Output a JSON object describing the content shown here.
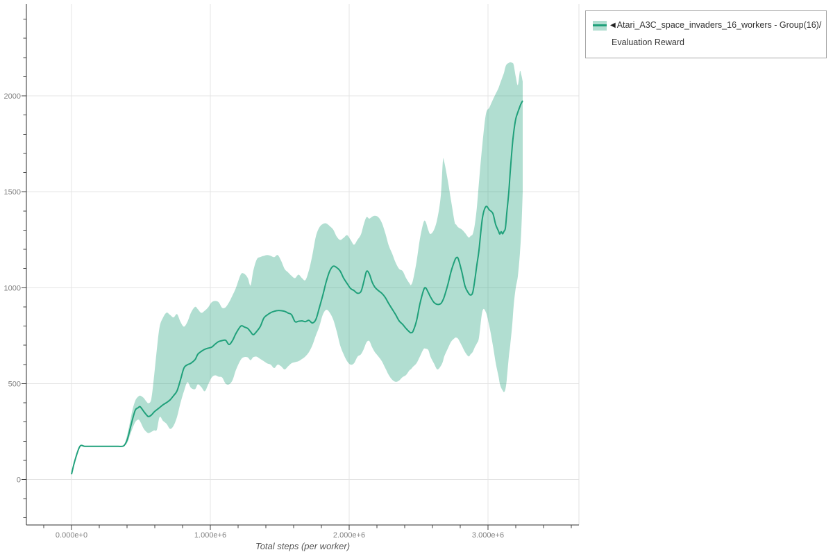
{
  "page": {
    "background": "#ffffff"
  },
  "legend": {
    "collapse_icon": "◀",
    "line1": "Atari_A3C_space_invaders_16_workers - Group(16)/",
    "line2": "Evaluation Reward",
    "border_color": "#a6a6a6"
  },
  "chart_data": {
    "type": "line",
    "title": "",
    "xlabel": "Total steps (per worker)",
    "ylabel": "",
    "grid": true,
    "legend_position": "top-right",
    "x_tick_labels": [
      "0.000e+0",
      "1.000e+6",
      "2.000e+6",
      "3.000e+6"
    ],
    "x_tick_values_e6": [
      0,
      1,
      2,
      3
    ],
    "x_minor_tick_step_e6": 0.2,
    "x_minor_tick_range_e6": [
      -0.2,
      3.6
    ],
    "y_tick_values": [
      0,
      500,
      1000,
      1500,
      2000
    ],
    "y_minor_tick_step": 100,
    "y_minor_tick_range": [
      -200,
      2400
    ],
    "x_range_e6": [
      -0.325,
      3.655
    ],
    "y_range": [
      -237,
      2478
    ],
    "colors": {
      "gridline": "#e4e4e4",
      "axis": "#2f2f2f",
      "tick": "#404040",
      "tick_label": "#808080",
      "right_border": "#e0e0e0"
    },
    "series": [
      {
        "name": "Atari_A3C_space_invaders_16_workers - Group(16)/Evaluation Reward",
        "color": "#1fa07a",
        "band_color": "rgba(31,160,122,0.35)",
        "points_format": [
          "x_steps_e6",
          "mean",
          "band_low",
          "band_high"
        ],
        "points": [
          [
            0.0,
            27,
            27,
            27
          ],
          [
            0.025,
            100,
            100,
            100
          ],
          [
            0.06,
            172,
            172,
            172
          ],
          [
            0.095,
            173,
            173,
            173
          ],
          [
            0.135,
            173,
            173,
            173
          ],
          [
            0.185,
            173,
            173,
            173
          ],
          [
            0.235,
            173,
            173,
            173
          ],
          [
            0.285,
            173,
            173,
            173
          ],
          [
            0.335,
            173,
            173,
            173
          ],
          [
            0.375,
            175,
            175,
            175
          ],
          [
            0.4,
            205,
            190,
            228
          ],
          [
            0.42,
            258,
            228,
            295
          ],
          [
            0.44,
            315,
            268,
            365
          ],
          [
            0.46,
            362,
            300,
            412
          ],
          [
            0.48,
            374,
            312,
            432
          ],
          [
            0.495,
            379,
            302,
            437
          ],
          [
            0.52,
            355,
            265,
            425
          ],
          [
            0.54,
            337,
            248,
            406
          ],
          [
            0.555,
            328,
            242,
            398
          ],
          [
            0.575,
            336,
            248,
            420
          ],
          [
            0.595,
            352,
            256,
            540
          ],
          [
            0.615,
            364,
            260,
            680
          ],
          [
            0.635,
            375,
            326,
            797
          ],
          [
            0.66,
            390,
            305,
            845
          ],
          [
            0.685,
            401,
            290,
            870
          ],
          [
            0.71,
            415,
            264,
            858
          ],
          [
            0.735,
            437,
            280,
            845
          ],
          [
            0.76,
            462,
            326,
            862
          ],
          [
            0.785,
            520,
            399,
            822
          ],
          [
            0.81,
            581,
            460,
            797
          ],
          [
            0.835,
            598,
            507,
            822
          ],
          [
            0.86,
            606,
            478,
            869
          ],
          [
            0.89,
            625,
            471,
            900
          ],
          [
            0.91,
            653,
            496,
            888
          ],
          [
            0.935,
            668,
            482,
            869
          ],
          [
            0.96,
            679,
            460,
            880
          ],
          [
            0.985,
            685,
            496,
            898
          ],
          [
            1.01,
            690,
            532,
            924
          ],
          [
            1.035,
            706,
            543,
            931
          ],
          [
            1.06,
            719,
            536,
            924
          ],
          [
            1.085,
            724,
            532,
            895
          ],
          [
            1.11,
            726,
            500,
            898
          ],
          [
            1.135,
            704,
            496,
            924
          ],
          [
            1.16,
            725,
            518,
            960
          ],
          [
            1.185,
            762,
            572,
            1000
          ],
          [
            1.22,
            800,
            625,
            1070
          ],
          [
            1.245,
            795,
            638,
            1072
          ],
          [
            1.27,
            787,
            636,
            1050
          ],
          [
            1.29,
            770,
            622,
            1012
          ],
          [
            1.31,
            755,
            638,
            1090
          ],
          [
            1.335,
            773,
            640,
            1148
          ],
          [
            1.36,
            798,
            628,
            1160
          ],
          [
            1.385,
            841,
            617,
            1166
          ],
          [
            1.41,
            858,
            605,
            1170
          ],
          [
            1.435,
            870,
            599,
            1166
          ],
          [
            1.46,
            877,
            581,
            1159
          ],
          [
            1.485,
            881,
            599,
            1170
          ],
          [
            1.51,
            880,
            590,
            1140
          ],
          [
            1.535,
            877,
            574,
            1098
          ],
          [
            1.56,
            868,
            590,
            1080
          ],
          [
            1.585,
            859,
            606,
            1062
          ],
          [
            1.61,
            823,
            612,
            1050
          ],
          [
            1.635,
            825,
            617,
            1068
          ],
          [
            1.66,
            827,
            628,
            1050
          ],
          [
            1.685,
            823,
            642,
            1040
          ],
          [
            1.71,
            830,
            664,
            1090
          ],
          [
            1.735,
            816,
            700,
            1170
          ],
          [
            1.76,
            834,
            751,
            1267
          ],
          [
            1.785,
            895,
            798,
            1314
          ],
          [
            1.81,
            960,
            859,
            1332
          ],
          [
            1.835,
            1032,
            885,
            1335
          ],
          [
            1.86,
            1087,
            870,
            1321
          ],
          [
            1.885,
            1112,
            834,
            1303
          ],
          [
            1.91,
            1105,
            773,
            1267
          ],
          [
            1.935,
            1087,
            700,
            1249
          ],
          [
            1.96,
            1050,
            653,
            1260
          ],
          [
            1.985,
            1022,
            617,
            1274
          ],
          [
            2.01,
            996,
            599,
            1250
          ],
          [
            2.035,
            985,
            606,
            1224
          ],
          [
            2.06,
            971,
            640,
            1250
          ],
          [
            2.085,
            980,
            653,
            1278
          ],
          [
            2.105,
            1030,
            680,
            1330
          ],
          [
            2.125,
            1085,
            715,
            1368
          ],
          [
            2.145,
            1072,
            722,
            1360
          ],
          [
            2.165,
            1030,
            690,
            1370
          ],
          [
            2.185,
            1003,
            664,
            1375
          ],
          [
            2.21,
            985,
            642,
            1368
          ],
          [
            2.235,
            971,
            617,
            1339
          ],
          [
            2.26,
            949,
            581,
            1285
          ],
          [
            2.285,
            917,
            545,
            1220
          ],
          [
            2.31,
            888,
            520,
            1177
          ],
          [
            2.335,
            859,
            509,
            1130
          ],
          [
            2.36,
            827,
            516,
            1098
          ],
          [
            2.385,
            809,
            534,
            1087
          ],
          [
            2.41,
            787,
            545,
            1050
          ],
          [
            2.435,
            769,
            570,
            1022
          ],
          [
            2.445,
            765,
            575,
            1014
          ],
          [
            2.46,
            773,
            588,
            1040
          ],
          [
            2.485,
            827,
            606,
            1134
          ],
          [
            2.51,
            917,
            642,
            1256
          ],
          [
            2.535,
            985,
            679,
            1339
          ],
          [
            2.55,
            1000,
            682,
            1345
          ],
          [
            2.57,
            975,
            675,
            1300
          ],
          [
            2.585,
            953,
            642,
            1280
          ],
          [
            2.61,
            924,
            606,
            1300
          ],
          [
            2.635,
            913,
            574,
            1360
          ],
          [
            2.66,
            917,
            592,
            1480
          ],
          [
            2.675,
            935,
            615,
            1660
          ],
          [
            2.685,
            953,
            642,
            1655
          ],
          [
            2.71,
            1014,
            682,
            1560
          ],
          [
            2.735,
            1087,
            719,
            1449
          ],
          [
            2.76,
            1141,
            737,
            1341
          ],
          [
            2.77,
            1155,
            740,
            1330
          ],
          [
            2.785,
            1152,
            733,
            1315
          ],
          [
            2.81,
            1087,
            700,
            1304
          ],
          [
            2.835,
            1007,
            664,
            1285
          ],
          [
            2.86,
            971,
            642,
            1262
          ],
          [
            2.875,
            962,
            653,
            1270
          ],
          [
            2.89,
            975,
            665,
            1280
          ],
          [
            2.905,
            1040,
            690,
            1330
          ],
          [
            2.92,
            1120,
            710,
            1420
          ],
          [
            2.935,
            1195,
            740,
            1550
          ],
          [
            2.96,
            1364,
            878,
            1750
          ],
          [
            2.985,
            1423,
            872,
            1905
          ],
          [
            3.01,
            1405,
            798,
            1940
          ],
          [
            3.035,
            1387,
            700,
            1980
          ],
          [
            3.055,
            1330,
            610,
            2010
          ],
          [
            3.075,
            1296,
            540,
            2040
          ],
          [
            3.085,
            1280,
            500,
            2060
          ],
          [
            3.095,
            1292,
            478,
            2080
          ],
          [
            3.105,
            1281,
            465,
            2100
          ],
          [
            3.115,
            1294,
            456,
            2120
          ],
          [
            3.125,
            1310,
            470,
            2150
          ],
          [
            3.135,
            1387,
            520,
            2165
          ],
          [
            3.15,
            1500,
            640,
            2172
          ],
          [
            3.16,
            1603,
            700,
            2176
          ],
          [
            3.175,
            1740,
            810,
            2172
          ],
          [
            3.185,
            1809,
            907,
            2162
          ],
          [
            3.2,
            1880,
            1000,
            2100
          ],
          [
            3.215,
            1915,
            1060,
            2057
          ],
          [
            3.23,
            1945,
            1180,
            2129
          ],
          [
            3.24,
            1962,
            1300,
            2110
          ],
          [
            3.25,
            1975,
            1500,
            2075
          ]
        ]
      }
    ]
  }
}
